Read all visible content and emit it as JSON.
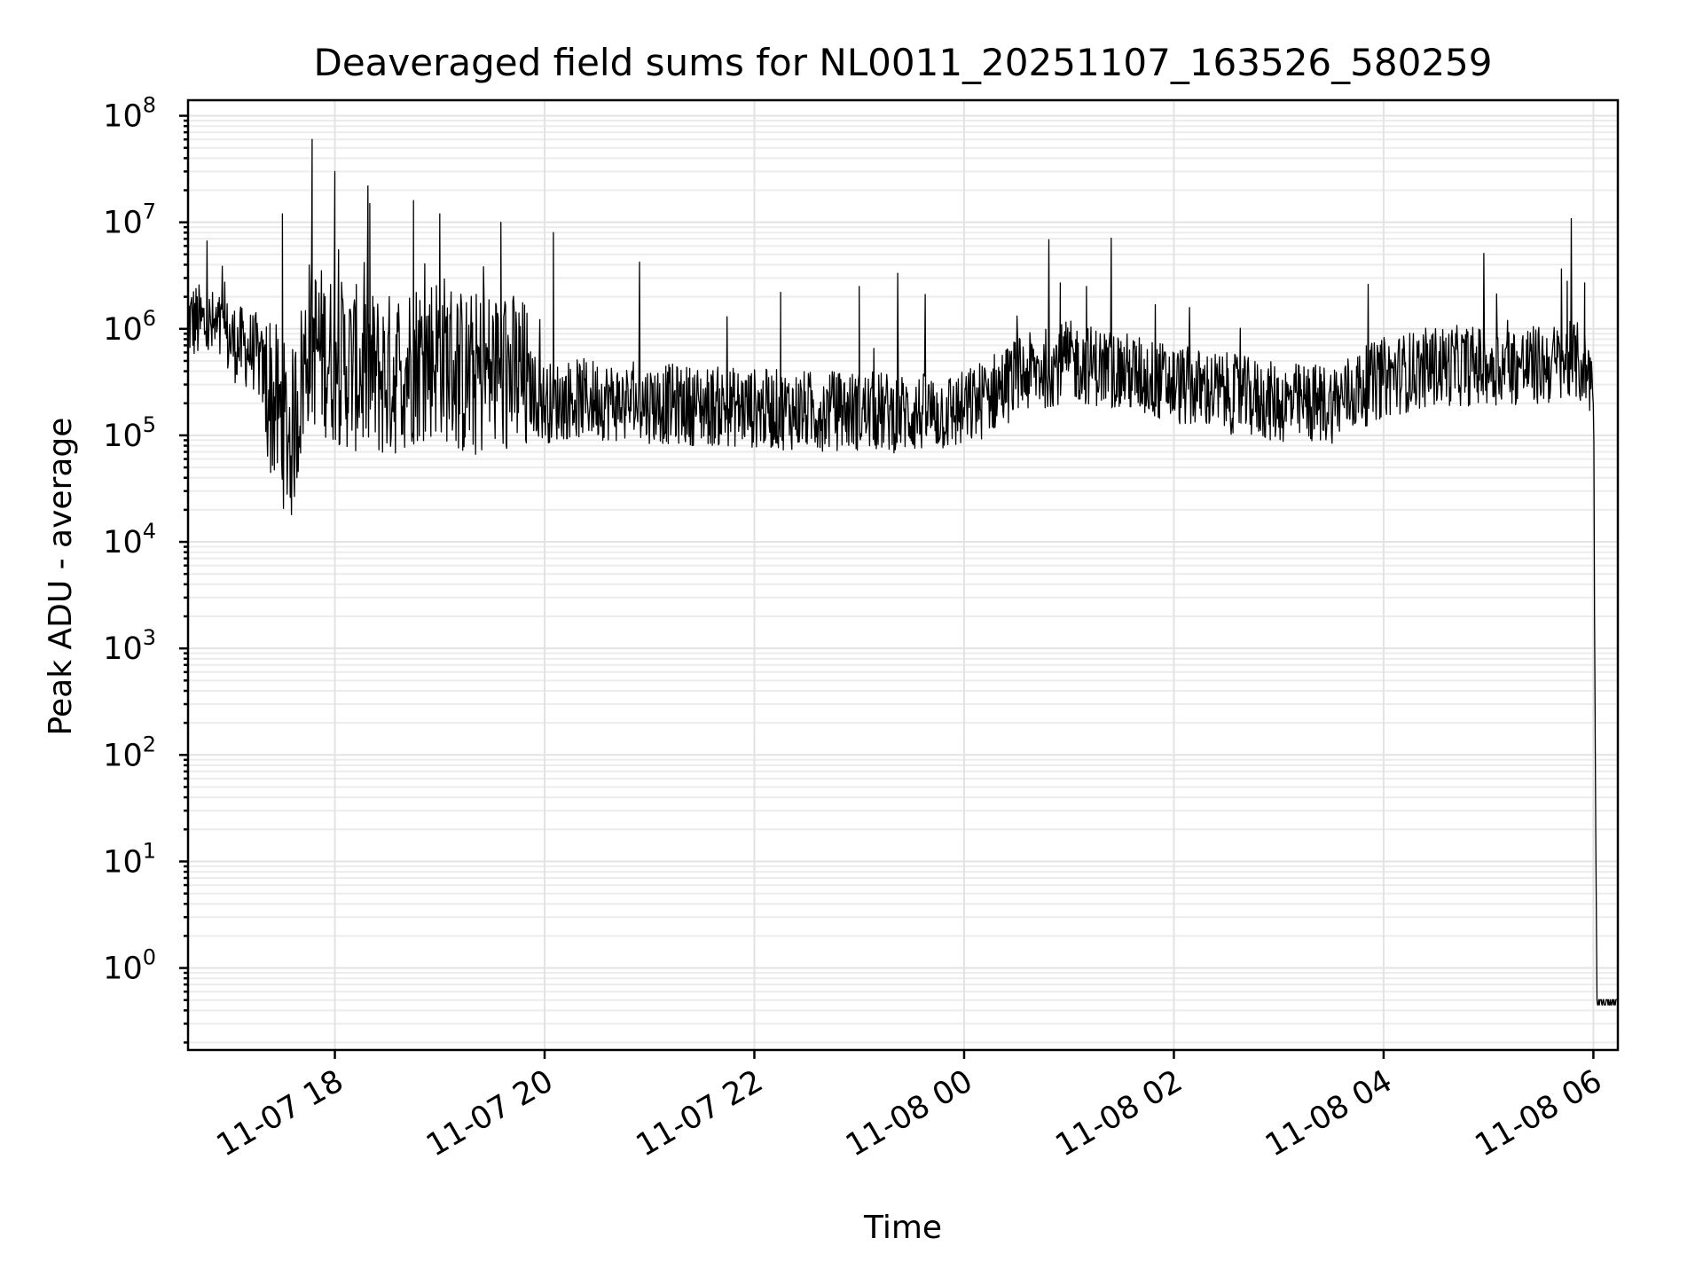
{
  "chart_data": {
    "type": "line",
    "title": "Deaveraged field sums for NL0011_20251107_163526_580259",
    "xlabel": "Time",
    "ylabel": "Peak ADU - average",
    "yscale": "log",
    "grid": "on (major and minor)",
    "legend": "none",
    "line_color": "#000000",
    "xlim": [
      "2025-11-07 16:36",
      "2025-11-08 06:14"
    ],
    "ylim": [
      0.17,
      140000000
    ],
    "x_ticks": [
      "11-07 18",
      "11-07 20",
      "11-07 22",
      "11-08 00",
      "11-08 02",
      "11-08 04",
      "11-08 06"
    ],
    "x_tick_times": [
      "2025-11-07 18:00",
      "2025-11-07 20:00",
      "2025-11-07 22:00",
      "2025-11-08 00:00",
      "2025-11-08 02:00",
      "2025-11-08 04:00",
      "2025-11-08 06:00"
    ],
    "y_ticks": [
      {
        "base": "10",
        "exp": "0",
        "value": 1
      },
      {
        "base": "10",
        "exp": "1",
        "value": 10
      },
      {
        "base": "10",
        "exp": "2",
        "value": 100
      },
      {
        "base": "10",
        "exp": "3",
        "value": 1000
      },
      {
        "base": "10",
        "exp": "4",
        "value": 10000
      },
      {
        "base": "10",
        "exp": "5",
        "value": 100000
      },
      {
        "base": "10",
        "exp": "6",
        "value": 1000000
      },
      {
        "base": "10",
        "exp": "7",
        "value": 10000000
      },
      {
        "base": "10",
        "exp": "8",
        "value": 100000000
      }
    ],
    "series": [
      {
        "x": [
          "2025-11-07 16:36",
          "2025-11-07 16:45",
          "2025-11-07 16:55",
          "2025-11-07 17:05",
          "2025-11-07 17:15",
          "2025-11-07 17:25",
          "2025-11-07 17:35",
          "2025-11-07 17:45",
          "2025-11-07 18:00",
          "2025-11-07 18:15",
          "2025-11-07 18:30",
          "2025-11-07 18:45",
          "2025-11-07 19:00",
          "2025-11-07 19:15",
          "2025-11-07 19:30",
          "2025-11-07 19:45",
          "2025-11-07 20:00",
          "2025-11-07 20:15",
          "2025-11-07 20:30",
          "2025-11-07 20:45",
          "2025-11-07 21:00",
          "2025-11-07 21:30",
          "2025-11-07 22:00",
          "2025-11-07 22:30",
          "2025-11-07 23:00",
          "2025-11-07 23:30",
          "2025-11-08 00:00",
          "2025-11-08 00:30",
          "2025-11-08 01:00",
          "2025-11-08 01:30",
          "2025-11-08 02:00",
          "2025-11-08 02:30",
          "2025-11-08 03:00",
          "2025-11-08 03:30",
          "2025-11-08 04:00",
          "2025-11-08 04:30",
          "2025-11-08 05:00",
          "2025-11-08 05:30",
          "2025-11-08 05:50",
          "2025-11-08 06:00",
          "2025-11-08 06:02",
          "2025-11-08 06:14"
        ],
        "y": [
          1200000,
          1100000,
          900000,
          700000,
          600000,
          200000,
          90000,
          800000,
          500000,
          400000,
          350000,
          500000,
          600000,
          350000,
          400000,
          350000,
          200000,
          220000,
          220000,
          200000,
          200000,
          190000,
          180000,
          170000,
          170000,
          160000,
          170000,
          350000,
          500000,
          400000,
          300000,
          250000,
          200000,
          200000,
          350000,
          450000,
          450000,
          450000,
          500000,
          350000,
          0.45,
          0.45
        ],
        "peaks_x": [
          "2025-11-07 17:30",
          "2025-11-07 17:47",
          "2025-11-07 18:00",
          "2025-11-07 18:20",
          "2025-11-07 18:45",
          "2025-11-07 19:00",
          "2025-11-07 19:35",
          "2025-11-07 20:05",
          "2025-11-07 22:15",
          "2025-11-07 23:00",
          "2025-11-08 00:55",
          "2025-11-08 01:10",
          "2025-11-08 05:45",
          "2025-11-08 05:55",
          "2025-11-08 06:01"
        ],
        "peaks_y": [
          12000000,
          60000000,
          30000000,
          15000000,
          16000000,
          12000000,
          10000000,
          8000000,
          2200000,
          2500000,
          2700000,
          2500000,
          2800000,
          2700000,
          220
        ]
      }
    ]
  }
}
